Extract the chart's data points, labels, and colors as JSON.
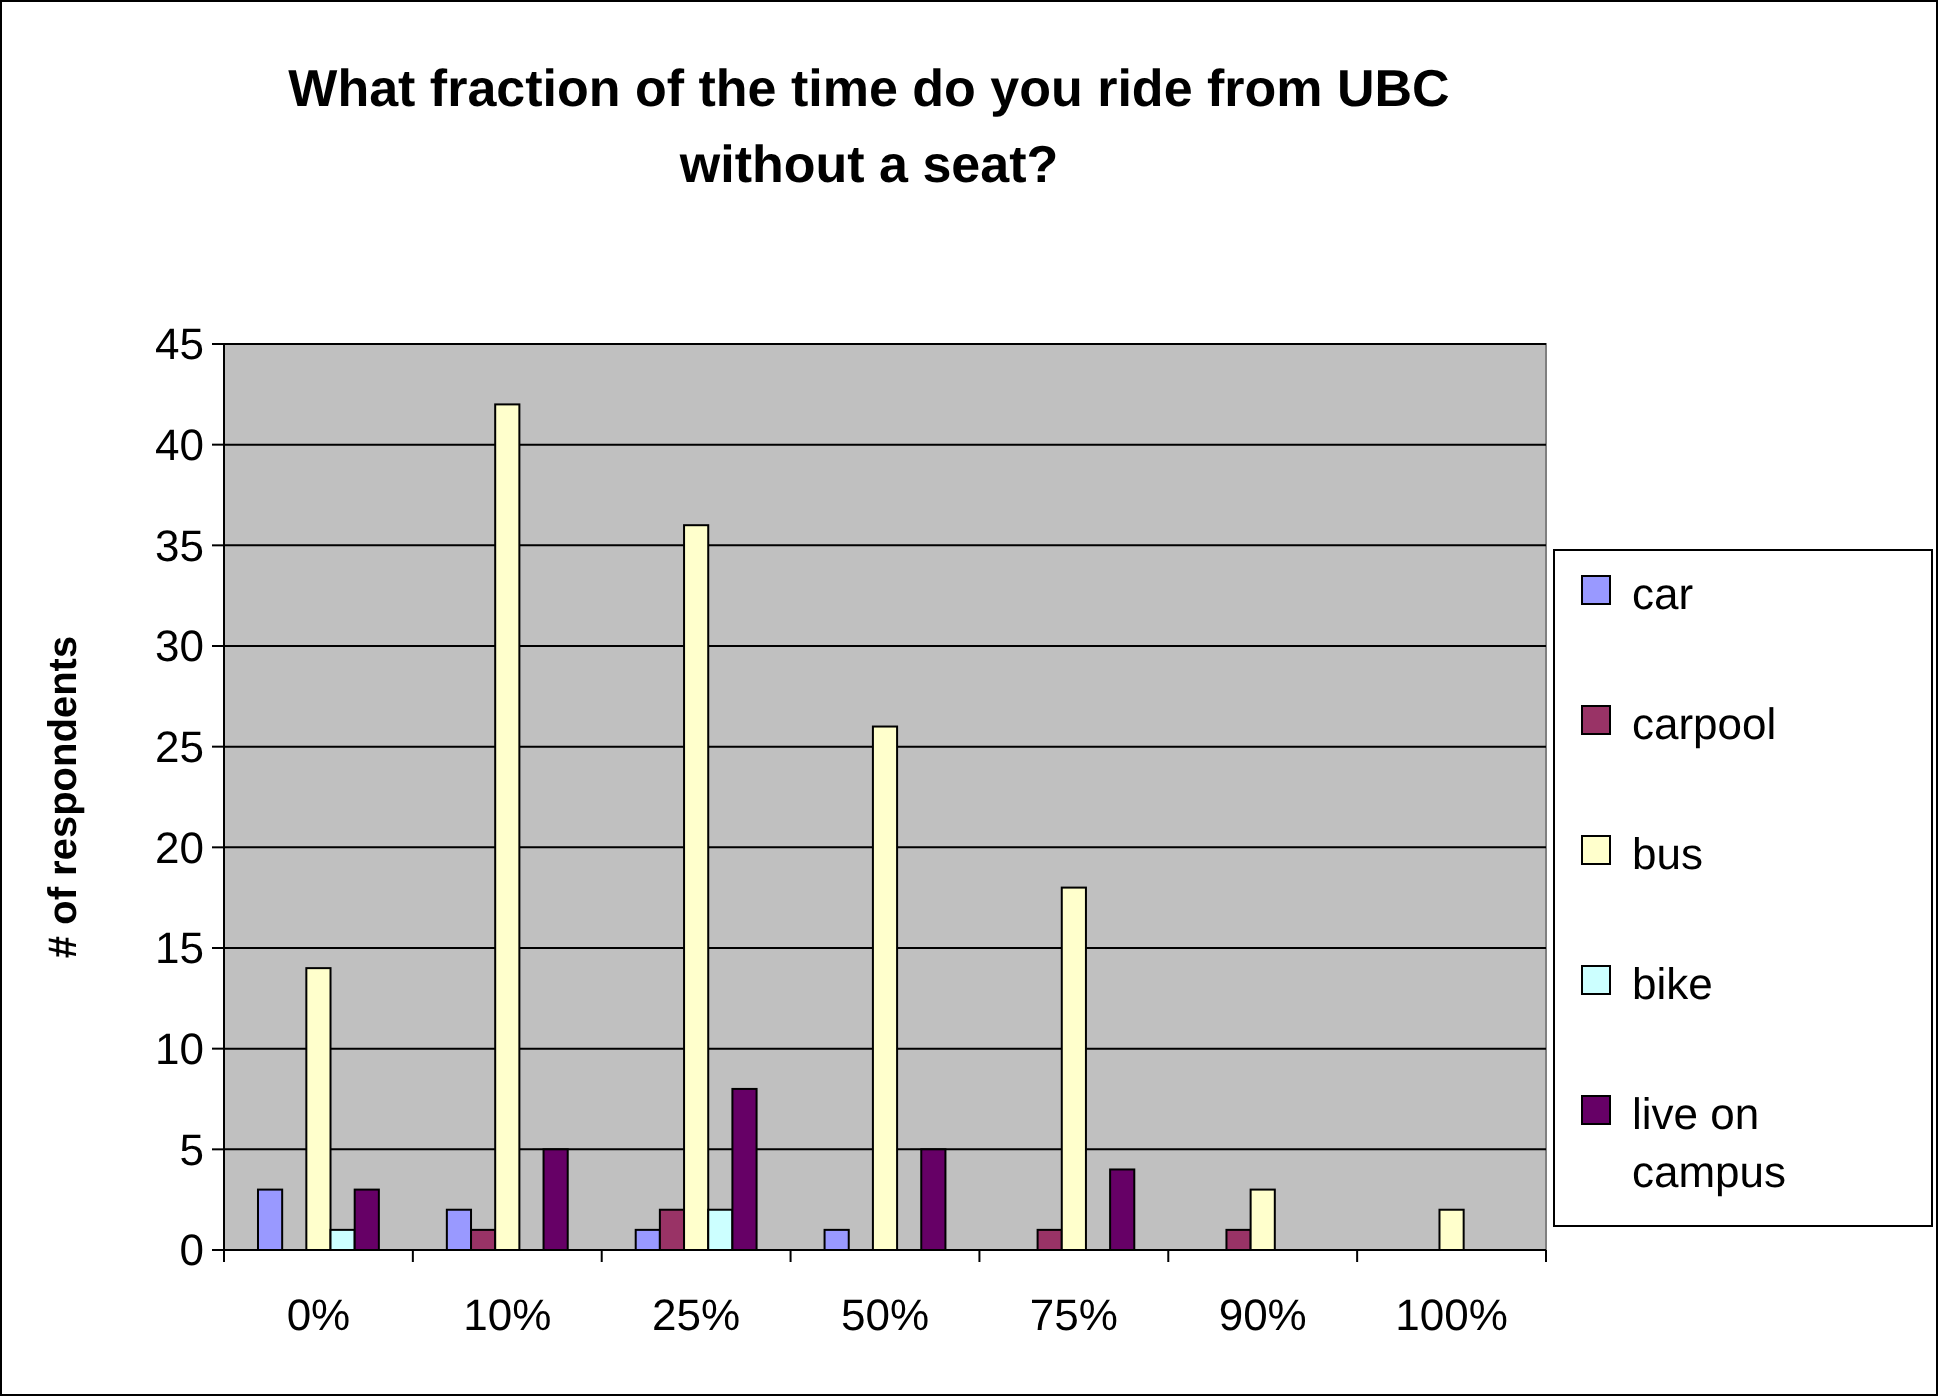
{
  "chart_data": {
    "type": "bar",
    "title": "What fraction of the time do you ride from UBC without a seat?",
    "ylabel": "# of respondents",
    "categories": [
      "0%",
      "10%",
      "25%",
      "50%",
      "75%",
      "90%",
      "100%"
    ],
    "series": [
      {
        "name": "car",
        "color": "#9999ff",
        "values": [
          3,
          2,
          1,
          1,
          0,
          0,
          0
        ]
      },
      {
        "name": "carpool",
        "color": "#993366",
        "values": [
          0,
          1,
          2,
          0,
          1,
          1,
          0
        ]
      },
      {
        "name": "bus",
        "color": "#ffffcc",
        "values": [
          14,
          42,
          36,
          26,
          18,
          3,
          2
        ]
      },
      {
        "name": "bike",
        "color": "#ccffff",
        "values": [
          1,
          0,
          2,
          0,
          0,
          0,
          0
        ]
      },
      {
        "name": "live on campus",
        "color": "#660066",
        "values": [
          3,
          5,
          8,
          5,
          4,
          0,
          0
        ]
      }
    ],
    "ylim": [
      0,
      45
    ],
    "yticks": [
      0,
      5,
      10,
      15,
      20,
      25,
      30,
      35,
      40,
      45
    ],
    "grid": "y",
    "legend": "right"
  }
}
